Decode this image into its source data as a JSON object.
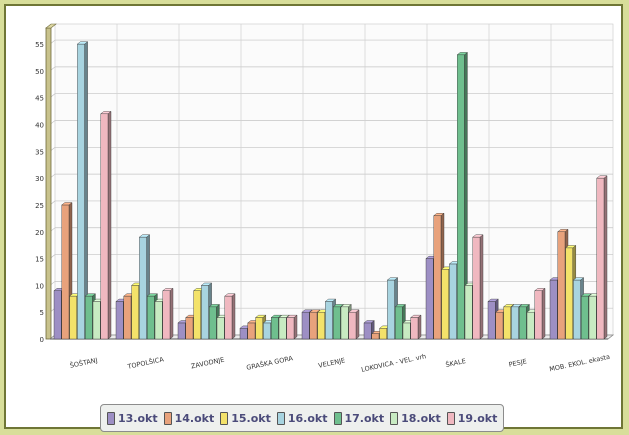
{
  "chart_data": {
    "type": "bar",
    "categories": [
      "ŠOŠTANJ",
      "TOPOLŠICA",
      "ZAVODNJE",
      "GRAŠKA GORA",
      "VELENJE",
      "LOKOVICA - VEL. vrh",
      "ŠKALE",
      "PESJE",
      "MOB. EKOL. ekasta"
    ],
    "series": [
      {
        "name": "13.okt",
        "color": "#9d8fc4",
        "values": [
          9,
          7,
          3,
          2,
          5,
          3,
          15,
          7,
          11
        ]
      },
      {
        "name": "14.okt",
        "color": "#e8a27c",
        "values": [
          25,
          8,
          4,
          3,
          5,
          1,
          23,
          5,
          20
        ]
      },
      {
        "name": "15.okt",
        "color": "#f3e26a",
        "values": [
          8,
          10,
          9,
          4,
          5,
          2,
          13,
          6,
          17
        ]
      },
      {
        "name": "16.okt",
        "color": "#a8d4e0",
        "values": [
          55,
          19,
          10,
          3,
          7,
          11,
          14,
          6,
          11
        ]
      },
      {
        "name": "17.okt",
        "color": "#6fbf8e",
        "values": [
          8,
          8,
          6,
          4,
          6,
          6,
          53,
          6,
          8
        ]
      },
      {
        "name": "18.okt",
        "color": "#c8ebc2",
        "values": [
          7,
          7,
          4,
          4,
          6,
          3,
          10,
          5,
          8
        ]
      },
      {
        "name": "19.okt",
        "color": "#f0b8c0",
        "values": [
          42,
          9,
          8,
          4,
          5,
          4,
          19,
          9,
          30
        ]
      }
    ],
    "yticks": [
      "0",
      "5",
      "10",
      "15",
      "20",
      "25",
      "30",
      "35",
      "40",
      "45",
      "50",
      "55"
    ],
    "ylim": [
      0,
      58
    ],
    "grid": true,
    "legend_position": "bottom"
  }
}
